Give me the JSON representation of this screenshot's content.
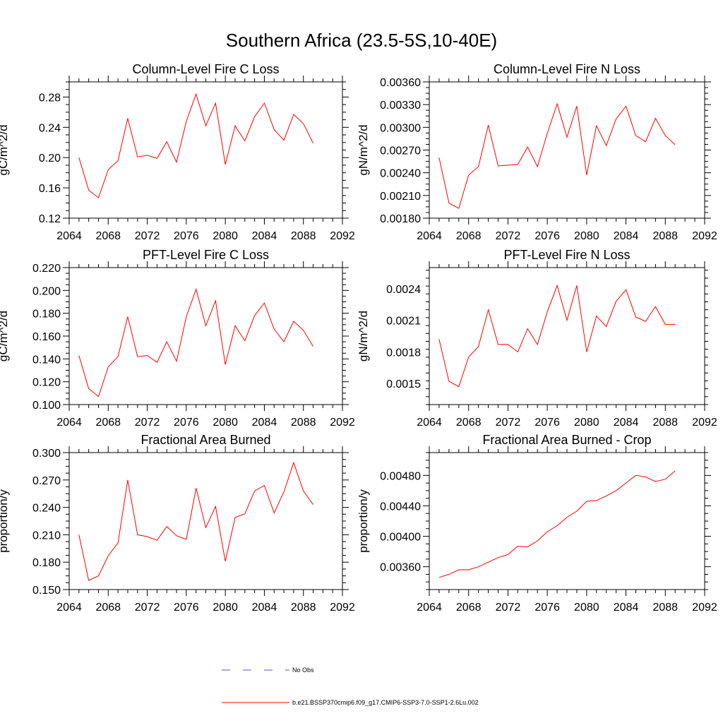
{
  "figure": {
    "title": "Southern Africa (23.5-5S,10-40E)"
  },
  "chart_data": [
    {
      "type": "line",
      "title": "Column-Level Fire C Loss",
      "ylabel": "gC/m^2/d",
      "xlabel": "",
      "xlim": [
        2064,
        2092
      ],
      "ylim": [
        0.12,
        0.3
      ],
      "xticks": [
        2064,
        2068,
        2072,
        2076,
        2080,
        2084,
        2088,
        2092
      ],
      "yticks": [
        0.12,
        0.16,
        0.2,
        0.24,
        0.28
      ],
      "ytick_labels": [
        "0.12",
        "0.16",
        "0.20",
        "0.24",
        "0.28"
      ],
      "x": [
        2065,
        2066,
        2067,
        2068,
        2069,
        2070,
        2071,
        2072,
        2073,
        2074,
        2075,
        2076,
        2077,
        2078,
        2079,
        2080,
        2081,
        2082,
        2083,
        2084,
        2085,
        2086,
        2087,
        2088,
        2089
      ],
      "series": [
        {
          "name": "b.e21.BSSP370cmip6.f09_g17.CMIP6-SSP3-7.0-SSP1-2.6Lu.002",
          "color": "#ff0000",
          "values": [
            0.2,
            0.157,
            0.147,
            0.184,
            0.196,
            0.252,
            0.201,
            0.203,
            0.199,
            0.221,
            0.194,
            0.248,
            0.284,
            0.242,
            0.272,
            0.191,
            0.242,
            0.222,
            0.254,
            0.272,
            0.237,
            0.223,
            0.257,
            0.245,
            0.219
          ]
        }
      ]
    },
    {
      "type": "line",
      "title": "Column-Level Fire N Loss",
      "ylabel": "gN/m^2/d",
      "xlabel": "",
      "xlim": [
        2064,
        2092
      ],
      "ylim": [
        0.0018,
        0.0036
      ],
      "xticks": [
        2064,
        2068,
        2072,
        2076,
        2080,
        2084,
        2088,
        2092
      ],
      "yticks": [
        0.0018,
        0.0021,
        0.0024,
        0.0027,
        0.003,
        0.0033,
        0.0036
      ],
      "ytick_labels": [
        "0.00180",
        "0.00210",
        "0.00240",
        "0.00270",
        "0.00300",
        "0.00330",
        "0.00360"
      ],
      "x": [
        2065,
        2066,
        2067,
        2068,
        2069,
        2070,
        2071,
        2072,
        2073,
        2074,
        2075,
        2076,
        2077,
        2078,
        2079,
        2080,
        2081,
        2082,
        2083,
        2084,
        2085,
        2086,
        2087,
        2088,
        2089
      ],
      "series": [
        {
          "name": "b.e21.BSSP370cmip6.f09_g17.CMIP6-SSP3-7.0-SSP1-2.6Lu.002",
          "color": "#ff0000",
          "values": [
            0.0026,
            0.002,
            0.00193,
            0.00237,
            0.00248,
            0.00303,
            0.00249,
            0.0025,
            0.00251,
            0.00274,
            0.00248,
            0.00292,
            0.00331,
            0.00287,
            0.00328,
            0.00237,
            0.00302,
            0.00276,
            0.00311,
            0.00328,
            0.00289,
            0.00281,
            0.00312,
            0.00289,
            0.00277
          ]
        }
      ]
    },
    {
      "type": "line",
      "title": "PFT-Level Fire C Loss",
      "ylabel": "gC/m^2/d",
      "xlabel": "",
      "xlim": [
        2064,
        2092
      ],
      "ylim": [
        0.1,
        0.22
      ],
      "xticks": [
        2064,
        2068,
        2072,
        2076,
        2080,
        2084,
        2088,
        2092
      ],
      "yticks": [
        0.1,
        0.12,
        0.14,
        0.16,
        0.18,
        0.2,
        0.22
      ],
      "ytick_labels": [
        "0.100",
        "0.120",
        "0.140",
        "0.160",
        "0.180",
        "0.200",
        "0.220"
      ],
      "x": [
        2065,
        2066,
        2067,
        2068,
        2069,
        2070,
        2071,
        2072,
        2073,
        2074,
        2075,
        2076,
        2077,
        2078,
        2079,
        2080,
        2081,
        2082,
        2083,
        2084,
        2085,
        2086,
        2087,
        2088,
        2089
      ],
      "series": [
        {
          "name": "b.e21.BSSP370cmip6.f09_g17.CMIP6-SSP3-7.0-SSP1-2.6Lu.002",
          "color": "#ff0000",
          "values": [
            0.143,
            0.114,
            0.107,
            0.133,
            0.142,
            0.177,
            0.142,
            0.143,
            0.137,
            0.155,
            0.138,
            0.177,
            0.201,
            0.169,
            0.191,
            0.135,
            0.169,
            0.156,
            0.178,
            0.189,
            0.166,
            0.155,
            0.173,
            0.165,
            0.151
          ]
        }
      ]
    },
    {
      "type": "line",
      "title": "PFT-Level Fire N Loss",
      "ylabel": "gN/m^2/d",
      "xlabel": "",
      "xlim": [
        2064,
        2092
      ],
      "ylim": [
        0.0013,
        0.0026
      ],
      "xticks": [
        2064,
        2068,
        2072,
        2076,
        2080,
        2084,
        2088,
        2092
      ],
      "yticks": [
        0.0015,
        0.0018,
        0.0021,
        0.0024
      ],
      "ytick_labels": [
        "0.0015",
        "0.0018",
        "0.0021",
        "0.0024"
      ],
      "x": [
        2065,
        2066,
        2067,
        2068,
        2069,
        2070,
        2071,
        2072,
        2073,
        2074,
        2075,
        2076,
        2077,
        2078,
        2079,
        2080,
        2081,
        2082,
        2083,
        2084,
        2085,
        2086,
        2087,
        2088,
        2089
      ],
      "series": [
        {
          "name": "b.e21.BSSP370cmip6.f09_g17.CMIP6-SSP3-7.0-SSP1-2.6Lu.002",
          "color": "#ff0000",
          "values": [
            0.00192,
            0.00152,
            0.00147,
            0.00175,
            0.00185,
            0.0022,
            0.00187,
            0.00187,
            0.0018,
            0.00202,
            0.00187,
            0.00218,
            0.00243,
            0.0021,
            0.00243,
            0.0018,
            0.00214,
            0.00204,
            0.00228,
            0.00239,
            0.00213,
            0.00209,
            0.00223,
            0.00206,
            0.00206
          ]
        }
      ]
    },
    {
      "type": "line",
      "title": "Fractional Area Burned",
      "ylabel": "proportion/y",
      "xlabel": "",
      "xlim": [
        2064,
        2092
      ],
      "ylim": [
        0.15,
        0.3
      ],
      "xticks": [
        2064,
        2068,
        2072,
        2076,
        2080,
        2084,
        2088,
        2092
      ],
      "yticks": [
        0.15,
        0.18,
        0.21,
        0.24,
        0.27,
        0.3
      ],
      "ytick_labels": [
        "0.150",
        "0.180",
        "0.210",
        "0.240",
        "0.270",
        "0.300"
      ],
      "x": [
        2065,
        2066,
        2067,
        2068,
        2069,
        2070,
        2071,
        2072,
        2073,
        2074,
        2075,
        2076,
        2077,
        2078,
        2079,
        2080,
        2081,
        2082,
        2083,
        2084,
        2085,
        2086,
        2087,
        2088,
        2089
      ],
      "series": [
        {
          "name": "b.e21.BSSP370cmip6.f09_g17.CMIP6-SSP3-7.0-SSP1-2.6Lu.002",
          "color": "#ff0000",
          "values": [
            0.21,
            0.16,
            0.165,
            0.187,
            0.201,
            0.27,
            0.21,
            0.208,
            0.204,
            0.219,
            0.209,
            0.205,
            0.261,
            0.218,
            0.241,
            0.181,
            0.229,
            0.233,
            0.258,
            0.264,
            0.234,
            0.257,
            0.289,
            0.258,
            0.243
          ]
        }
      ]
    },
    {
      "type": "line",
      "title": "Fractional Area Burned - Crop",
      "ylabel": "proportion/y",
      "xlabel": "",
      "xlim": [
        2064,
        2092
      ],
      "ylim": [
        0.0033,
        0.0051
      ],
      "xticks": [
        2064,
        2068,
        2072,
        2076,
        2080,
        2084,
        2088,
        2092
      ],
      "yticks": [
        0.0036,
        0.004,
        0.0044,
        0.0048
      ],
      "ytick_labels": [
        "0.00360",
        "0.00400",
        "0.00440",
        "0.00480"
      ],
      "x": [
        2065,
        2066,
        2067,
        2068,
        2069,
        2070,
        2071,
        2072,
        2073,
        2074,
        2075,
        2076,
        2077,
        2078,
        2079,
        2080,
        2081,
        2082,
        2083,
        2084,
        2085,
        2086,
        2087,
        2088,
        2089
      ],
      "series": [
        {
          "name": "b.e21.BSSP370cmip6.f09_g17.CMIP6-SSP3-7.0-SSP1-2.6Lu.002",
          "color": "#ff0000",
          "values": [
            0.00346,
            0.0035,
            0.00356,
            0.00356,
            0.0036,
            0.00366,
            0.00372,
            0.00376,
            0.00387,
            0.00386,
            0.00394,
            0.00406,
            0.00414,
            0.00425,
            0.00433,
            0.00446,
            0.00447,
            0.00453,
            0.0046,
            0.0047,
            0.0048,
            0.00478,
            0.00472,
            0.00475,
            0.00486
          ]
        }
      ]
    }
  ],
  "legend": {
    "entries": [
      {
        "label": "No Obs",
        "style": "dashed",
        "color": "#4a5fb4"
      },
      {
        "label": "b.e21.BSSP370cmip6.f09_g17.CMIP6-SSP3-7.0-SSP1-2.6Lu.002",
        "style": "solid",
        "color": "#ff0000"
      }
    ]
  }
}
